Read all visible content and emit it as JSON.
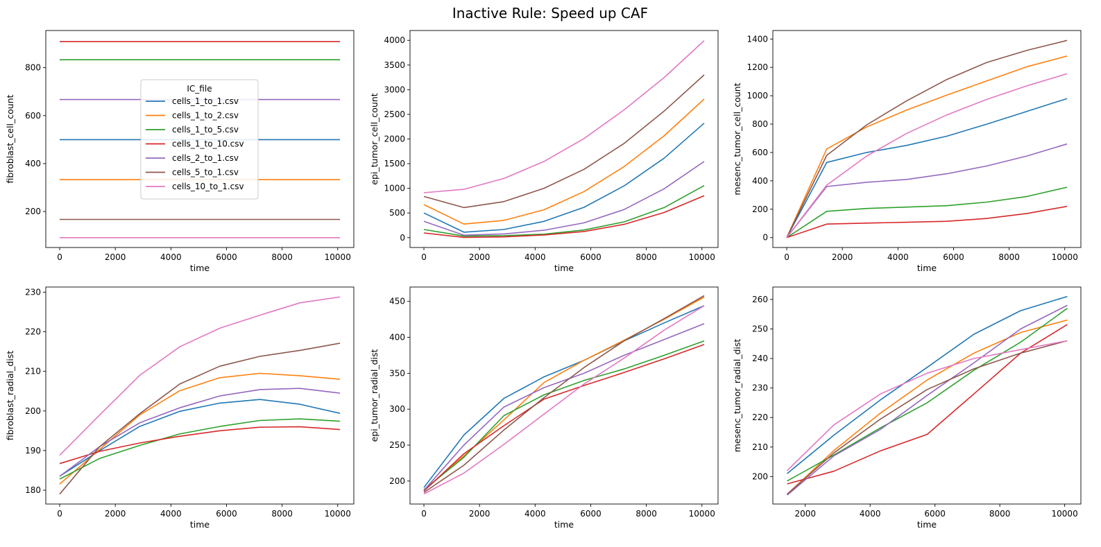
{
  "suptitle": "Inactive Rule: Speed up CAF",
  "legend": {
    "title": "IC_file",
    "placement": "inside upper-center of first subplot",
    "entries": [
      "cells_1_to_1.csv",
      "cells_1_to_2.csv",
      "cells_1_to_5.csv",
      "cells_1_to_10.csv",
      "cells_2_to_1.csv",
      "cells_5_to_1.csv",
      "cells_10_to_1.csv"
    ]
  },
  "series_colors": {
    "cells_1_to_1.csv": "#1f77b4",
    "cells_1_to_2.csv": "#ff7f0e",
    "cells_1_to_5.csv": "#2ca02c",
    "cells_1_to_10.csv": "#d62728",
    "cells_2_to_1.csv": "#9467bd",
    "cells_5_to_1.csv": "#8c564b",
    "cells_10_to_1.csv": "#e377c2"
  },
  "chart_data": [
    {
      "type": "line",
      "xlabel": "time",
      "ylabel": "fibroblast_cell_count",
      "xlim": [
        -500,
        10580
      ],
      "ylim": [
        50,
        955
      ],
      "xticks": [
        0,
        2000,
        4000,
        6000,
        8000,
        10000
      ],
      "yticks": [
        200,
        400,
        600,
        800
      ],
      "legend": true,
      "x": [
        0,
        1440,
        2880,
        4320,
        5760,
        7200,
        8640,
        10080
      ],
      "series": [
        {
          "name": "cells_1_to_1.csv",
          "values": [
            500,
            500,
            500,
            500,
            500,
            500,
            500,
            500
          ]
        },
        {
          "name": "cells_1_to_2.csv",
          "values": [
            333,
            333,
            333,
            333,
            333,
            333,
            333,
            333
          ]
        },
        {
          "name": "cells_1_to_5.csv",
          "values": [
            833,
            833,
            833,
            833,
            833,
            833,
            833,
            833
          ]
        },
        {
          "name": "cells_1_to_10.csv",
          "values": [
            909,
            909,
            909,
            909,
            909,
            909,
            909,
            909
          ]
        },
        {
          "name": "cells_2_to_1.csv",
          "values": [
            667,
            667,
            667,
            667,
            667,
            667,
            667,
            667
          ]
        },
        {
          "name": "cells_5_to_1.csv",
          "values": [
            167,
            167,
            167,
            167,
            167,
            167,
            167,
            167
          ]
        },
        {
          "name": "cells_10_to_1.csv",
          "values": [
            91,
            91,
            91,
            91,
            91,
            91,
            91,
            91
          ]
        }
      ]
    },
    {
      "type": "line",
      "xlabel": "time",
      "ylabel": "epi_tumor_cell_count",
      "xlim": [
        -500,
        10580
      ],
      "ylim": [
        -200,
        4200
      ],
      "xticks": [
        0,
        2000,
        4000,
        6000,
        8000,
        10000
      ],
      "yticks": [
        0,
        500,
        1000,
        1500,
        2000,
        2500,
        3000,
        3500,
        4000
      ],
      "legend": false,
      "x": [
        0,
        1440,
        2880,
        4320,
        5760,
        7200,
        8640,
        10080
      ],
      "series": [
        {
          "name": "cells_1_to_1.csv",
          "values": [
            500,
            110,
            165,
            330,
            615,
            1050,
            1610,
            2320
          ]
        },
        {
          "name": "cells_1_to_2.csv",
          "values": [
            670,
            275,
            350,
            565,
            935,
            1440,
            2065,
            2810
          ]
        },
        {
          "name": "cells_1_to_5.csv",
          "values": [
            165,
            30,
            40,
            70,
            155,
            320,
            610,
            1055
          ]
        },
        {
          "name": "cells_1_to_10.csv",
          "values": [
            95,
            5,
            15,
            55,
            125,
            270,
            510,
            850
          ]
        },
        {
          "name": "cells_2_to_1.csv",
          "values": [
            330,
            50,
            75,
            150,
            300,
            570,
            990,
            1545
          ]
        },
        {
          "name": "cells_5_to_1.csv",
          "values": [
            835,
            610,
            730,
            1000,
            1385,
            1910,
            2565,
            3300
          ]
        },
        {
          "name": "cells_10_to_1.csv",
          "values": [
            910,
            980,
            1200,
            1545,
            2010,
            2590,
            3245,
            3995
          ]
        }
      ]
    },
    {
      "type": "line",
      "xlabel": "time",
      "ylabel": "mesenc_tumor_cell_count",
      "xlim": [
        -500,
        10580
      ],
      "ylim": [
        -70,
        1460
      ],
      "xticks": [
        0,
        2000,
        4000,
        6000,
        8000,
        10000
      ],
      "yticks": [
        0,
        200,
        400,
        600,
        800,
        1000,
        1200,
        1400
      ],
      "legend": false,
      "x": [
        0,
        1440,
        2880,
        4320,
        5760,
        7200,
        8640,
        10080
      ],
      "series": [
        {
          "name": "cells_1_to_1.csv",
          "values": [
            0,
            530,
            600,
            650,
            715,
            800,
            890,
            980
          ]
        },
        {
          "name": "cells_1_to_2.csv",
          "values": [
            0,
            625,
            780,
            900,
            1005,
            1105,
            1205,
            1280
          ]
        },
        {
          "name": "cells_1_to_5.csv",
          "values": [
            0,
            185,
            205,
            215,
            225,
            250,
            290,
            355
          ]
        },
        {
          "name": "cells_1_to_10.csv",
          "values": [
            0,
            95,
            102,
            108,
            115,
            135,
            170,
            220
          ]
        },
        {
          "name": "cells_2_to_1.csv",
          "values": [
            0,
            360,
            390,
            410,
            450,
            505,
            575,
            660
          ]
        },
        {
          "name": "cells_5_to_1.csv",
          "values": [
            0,
            580,
            795,
            965,
            1115,
            1235,
            1320,
            1390
          ]
        },
        {
          "name": "cells_10_to_1.csv",
          "values": [
            0,
            370,
            575,
            735,
            865,
            975,
            1070,
            1155
          ]
        }
      ]
    },
    {
      "type": "line",
      "xlabel": "time",
      "ylabel": "fibroblast_radial_dist",
      "xlim": [
        -500,
        10580
      ],
      "ylim": [
        176.5,
        231.3
      ],
      "xticks": [
        0,
        2000,
        4000,
        6000,
        8000,
        10000
      ],
      "yticks": [
        180,
        190,
        200,
        210,
        220,
        230
      ],
      "legend": false,
      "x": [
        0,
        1440,
        2880,
        4320,
        5760,
        7200,
        8640,
        10080
      ],
      "series": [
        {
          "name": "cells_1_to_1.csv",
          "values": [
            183.5,
            190.0,
            196.1,
            199.9,
            202.0,
            202.9,
            201.7,
            199.4
          ]
        },
        {
          "name": "cells_1_to_2.csv",
          "values": [
            181.5,
            190.3,
            199.0,
            205.1,
            208.4,
            209.5,
            208.9,
            208.0
          ]
        },
        {
          "name": "cells_1_to_5.csv",
          "values": [
            182.8,
            188.0,
            191.3,
            194.2,
            196.1,
            197.6,
            198.0,
            197.4
          ]
        },
        {
          "name": "cells_1_to_10.csv",
          "values": [
            186.7,
            189.8,
            191.9,
            193.6,
            195.0,
            195.9,
            196.0,
            195.3
          ]
        },
        {
          "name": "cells_2_to_1.csv",
          "values": [
            183.5,
            191.0,
            197.0,
            200.8,
            203.8,
            205.4,
            205.7,
            204.5
          ]
        },
        {
          "name": "cells_5_to_1.csv",
          "values": [
            179.0,
            191.0,
            199.3,
            206.8,
            211.3,
            213.8,
            215.3,
            217.1
          ]
        },
        {
          "name": "cells_10_to_1.csv",
          "values": [
            188.8,
            199.0,
            209.0,
            216.2,
            220.9,
            224.2,
            227.3,
            228.8
          ]
        }
      ]
    },
    {
      "type": "line",
      "xlabel": "time",
      "ylabel": "epi_tumor_radial_dist",
      "xlim": [
        -500,
        10580
      ],
      "ylim": [
        168,
        470
      ],
      "xticks": [
        0,
        2000,
        4000,
        6000,
        8000,
        10000
      ],
      "yticks": [
        200,
        250,
        300,
        350,
        400,
        450
      ],
      "legend": false,
      "x": [
        0,
        1440,
        2880,
        4320,
        5760,
        7200,
        8640,
        10080
      ],
      "series": [
        {
          "name": "cells_1_to_1.csv",
          "values": [
            191,
            264,
            315,
            345,
            368,
            395,
            420,
            444
          ]
        },
        {
          "name": "cells_1_to_2.csv",
          "values": [
            187,
            235,
            285,
            337,
            368,
            396,
            425,
            456
          ]
        },
        {
          "name": "cells_1_to_5.csv",
          "values": [
            188,
            233,
            291,
            320,
            340,
            356,
            375,
            395
          ]
        },
        {
          "name": "cells_1_to_10.csv",
          "values": [
            186,
            238,
            277,
            314,
            333,
            351,
            370,
            390
          ]
        },
        {
          "name": "cells_2_to_1.csv",
          "values": [
            187,
            250,
            303,
            330,
            350,
            375,
            397,
            419
          ]
        },
        {
          "name": "cells_5_to_1.csv",
          "values": [
            184,
            222,
            271,
            316,
            358,
            395,
            426,
            458
          ]
        },
        {
          "name": "cells_10_to_1.csv",
          "values": [
            182,
            211,
            251,
            293,
            335,
            371,
            410,
            444
          ]
        }
      ]
    },
    {
      "type": "line",
      "xlabel": "time",
      "ylabel": "mesenc_tumor_radial_dist",
      "xlim": [
        1000,
        10500
      ],
      "ylim": [
        190.7,
        264.2
      ],
      "xticks": [
        2000,
        4000,
        6000,
        8000,
        10000
      ],
      "yticks": [
        200,
        210,
        220,
        230,
        240,
        250,
        260
      ],
      "legend": false,
      "x": [
        1440,
        2880,
        4320,
        5760,
        7200,
        8640,
        10080
      ],
      "series": [
        {
          "name": "cells_1_to_1.csv",
          "values": [
            201.0,
            214.0,
            226.0,
            237.0,
            248.2,
            256.2,
            261.0
          ]
        },
        {
          "name": "cells_1_to_2.csv",
          "values": [
            194.0,
            208.8,
            221.5,
            232.7,
            241.8,
            248.8,
            253.0
          ]
        },
        {
          "name": "cells_1_to_5.csv",
          "values": [
            198.5,
            207.3,
            216.5,
            225.0,
            236.0,
            245.5,
            257.0
          ]
        },
        {
          "name": "cells_1_to_10.csv",
          "values": [
            197.5,
            201.8,
            208.7,
            214.3,
            228.0,
            241.8,
            251.5
          ]
        },
        {
          "name": "cells_2_to_1.csv",
          "values": [
            193.7,
            207.0,
            216.0,
            227.5,
            238.5,
            250.0,
            258.0
          ]
        },
        {
          "name": "cells_5_to_1.csv",
          "values": [
            194.0,
            208.0,
            219.5,
            229.5,
            236.5,
            241.8,
            246.0
          ]
        },
        {
          "name": "cells_10_to_1.csv",
          "values": [
            202.0,
            217.5,
            228.0,
            235.0,
            240.0,
            243.0,
            246.0
          ]
        }
      ]
    }
  ]
}
